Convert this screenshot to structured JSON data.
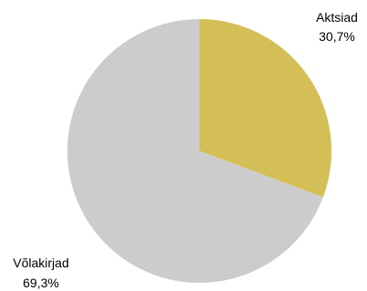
{
  "chart_data": {
    "type": "pie",
    "slices": [
      {
        "label": "Aktsiad",
        "value": 30.7,
        "display": "30,7%",
        "color": "#d4bf57"
      },
      {
        "label": "Võlakirjad",
        "value": 69.3,
        "display": "69,3%",
        "color": "#cccccc"
      }
    ],
    "start_angle_deg": 0,
    "direction": "clockwise",
    "legend": "none"
  }
}
